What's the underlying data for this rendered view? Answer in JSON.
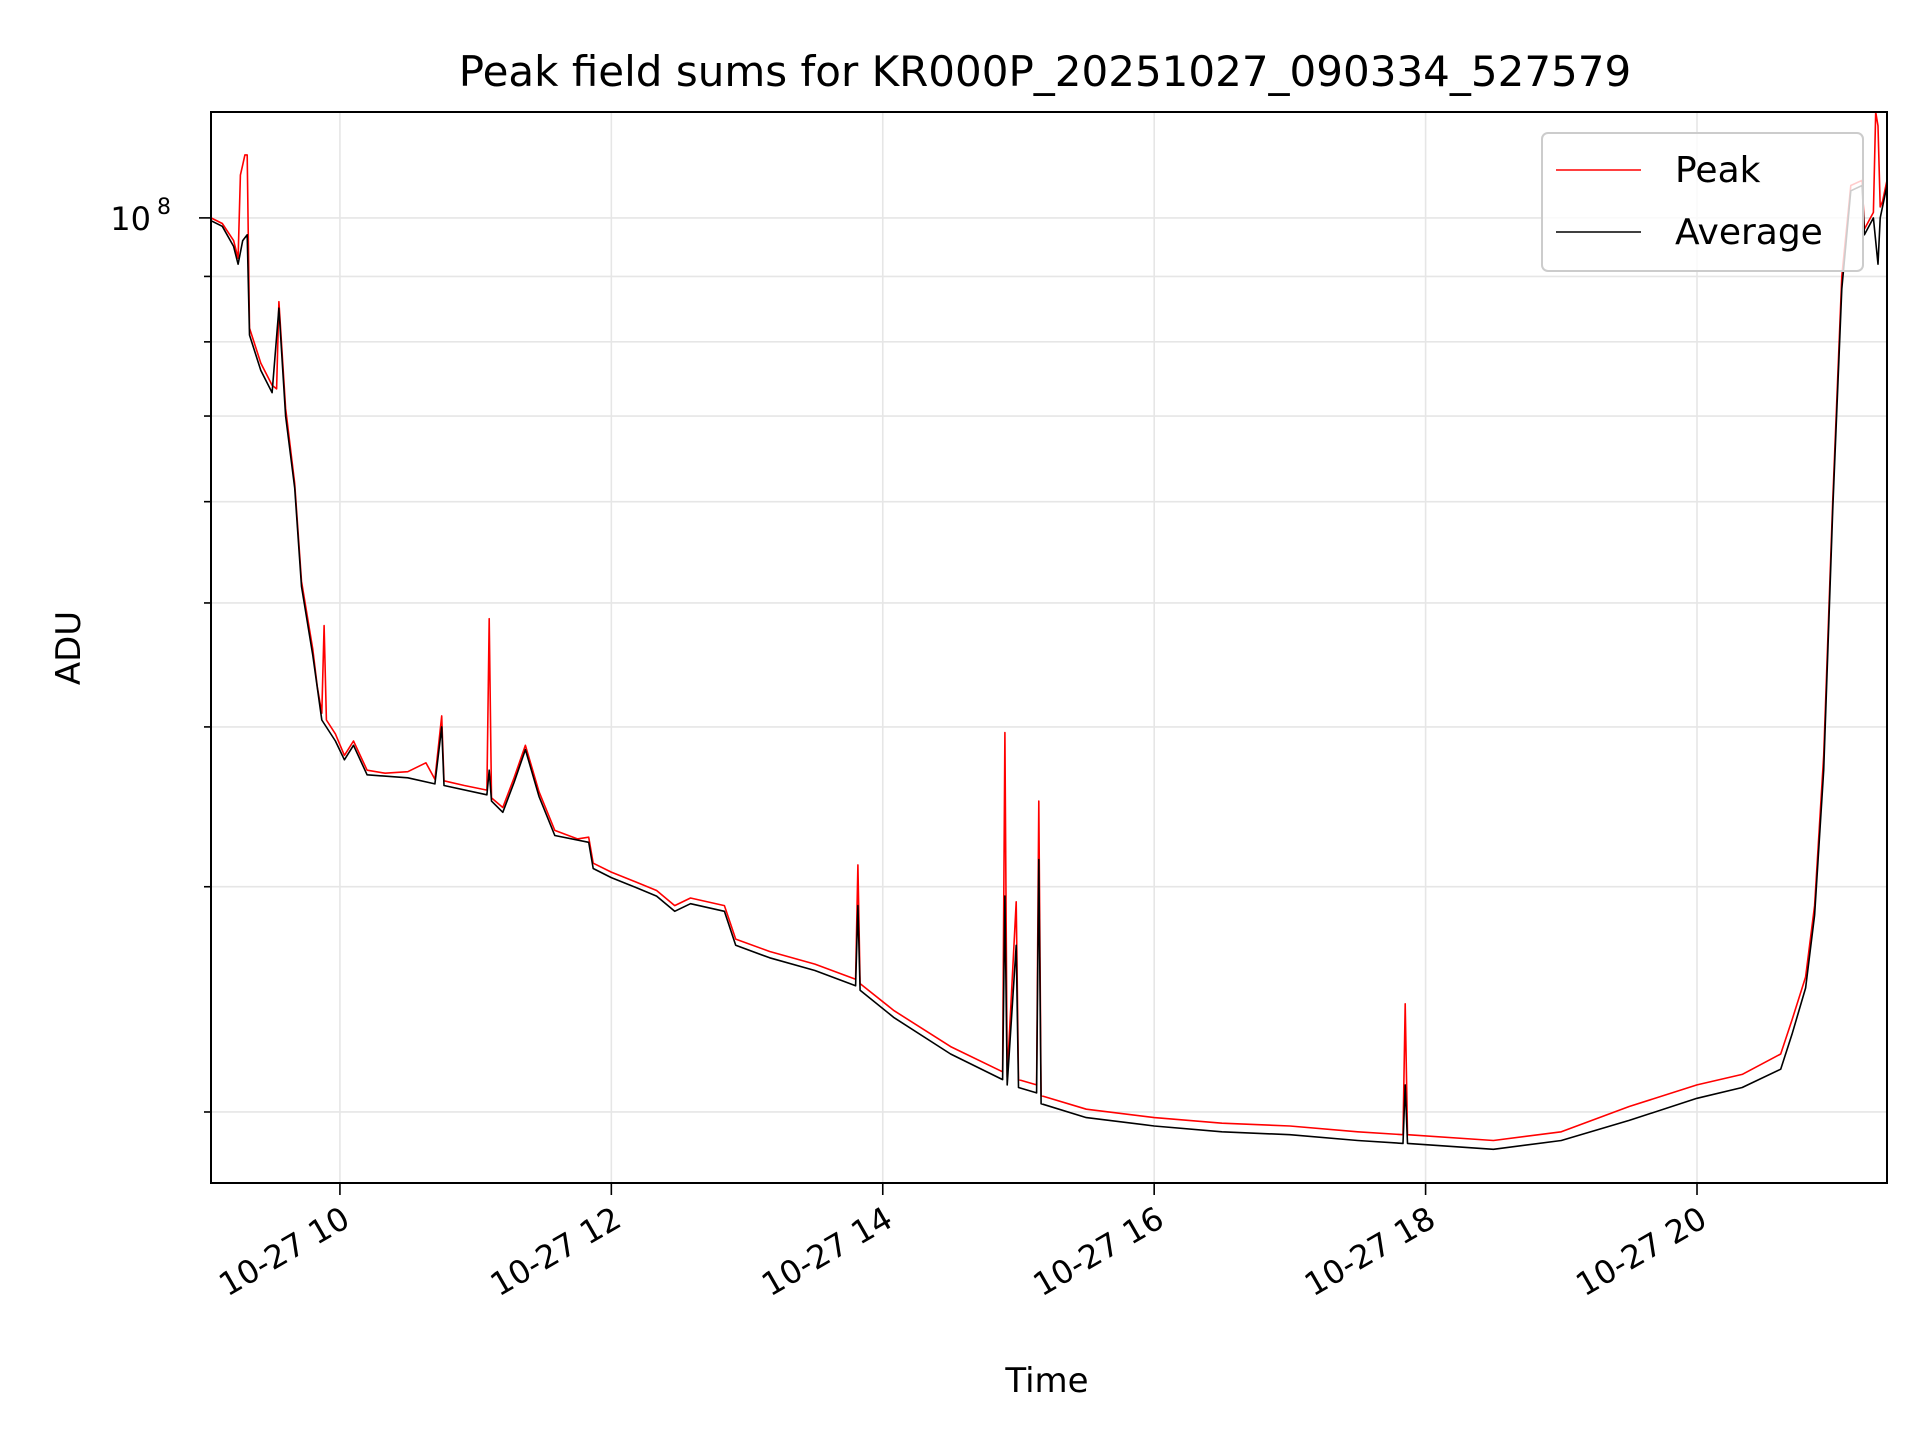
{
  "chart_data": {
    "type": "line",
    "title": "Peak field sums for KR000P_20251027_090334_527579",
    "xlabel": "Time",
    "ylabel": "ADU",
    "x_scale": "time",
    "y_scale": "log",
    "xlim": [
      "2025-10-27 09:03",
      "2025-10-27 21:24"
    ],
    "ylim": [
      17600000,
      121000000
    ],
    "grid": true,
    "legend_position": "upper right",
    "x_ticks": [
      {
        "label": "10-27 10",
        "value": "2025-10-27 10:00"
      },
      {
        "label": "10-27 12",
        "value": "2025-10-27 12:00"
      },
      {
        "label": "10-27 14",
        "value": "2025-10-27 14:00"
      },
      {
        "label": "10-27 16",
        "value": "2025-10-27 16:00"
      },
      {
        "label": "10-27 18",
        "value": "2025-10-27 18:00"
      },
      {
        "label": "10-27 20",
        "value": "2025-10-27 20:00"
      }
    ],
    "y_major_ticks": [
      {
        "label_base": "10",
        "label_exp": "8",
        "value": 100000000
      }
    ],
    "y_minor_ticks": [
      20000000,
      30000000,
      40000000,
      50000000,
      60000000,
      70000000,
      80000000,
      90000000
    ],
    "series": [
      {
        "name": "Peak",
        "color": "#ff0000",
        "points": [
          [
            "2025-10-27 09:03",
            100000000
          ],
          [
            "2025-10-27 09:08",
            99000000
          ],
          [
            "2025-10-27 09:13",
            96000000
          ],
          [
            "2025-10-27 09:15",
            93000000
          ],
          [
            "2025-10-27 09:16",
            108000000
          ],
          [
            "2025-10-27 09:17",
            110000000
          ],
          [
            "2025-10-27 09:18",
            112000000
          ],
          [
            "2025-10-27 09:19",
            112000000
          ],
          [
            "2025-10-27 09:20",
            82000000
          ],
          [
            "2025-10-27 09:25",
            77000000
          ],
          [
            "2025-10-27 09:30",
            74000000
          ],
          [
            "2025-10-27 09:32",
            73500000
          ],
          [
            "2025-10-27 09:33",
            86000000
          ],
          [
            "2025-10-27 09:36",
            71000000
          ],
          [
            "2025-10-27 09:40",
            62000000
          ],
          [
            "2025-10-27 09:43",
            52000000
          ],
          [
            "2025-10-27 09:48",
            46000000
          ],
          [
            "2025-10-27 09:50",
            43000000
          ],
          [
            "2025-10-27 09:52",
            41000000
          ],
          [
            "2025-10-27 09:53",
            48000000
          ],
          [
            "2025-10-27 09:54",
            40500000
          ],
          [
            "2025-10-27 09:58",
            39500000
          ],
          [
            "2025-10-27 10:02",
            38000000
          ],
          [
            "2025-10-27 10:06",
            39000000
          ],
          [
            "2025-10-27 10:12",
            37000000
          ],
          [
            "2025-10-27 10:20",
            36800000
          ],
          [
            "2025-10-27 10:30",
            36900000
          ],
          [
            "2025-10-27 10:38",
            37500000
          ],
          [
            "2025-10-27 10:42",
            36400000
          ],
          [
            "2025-10-27 10:45",
            40800000
          ],
          [
            "2025-10-27 10:46",
            36300000
          ],
          [
            "2025-10-27 10:55",
            36000000
          ],
          [
            "2025-10-27 11:05",
            35700000
          ],
          [
            "2025-10-27 11:06",
            48600000
          ],
          [
            "2025-10-27 11:07",
            35200000
          ],
          [
            "2025-10-27 11:12",
            34600000
          ],
          [
            "2025-10-27 11:17",
            36500000
          ],
          [
            "2025-10-27 11:22",
            38700000
          ],
          [
            "2025-10-27 11:28",
            35600000
          ],
          [
            "2025-10-27 11:35",
            33200000
          ],
          [
            "2025-10-27 11:45",
            32700000
          ],
          [
            "2025-10-27 11:50",
            32800000
          ],
          [
            "2025-10-27 11:52",
            31300000
          ],
          [
            "2025-10-27 12:00",
            30800000
          ],
          [
            "2025-10-27 12:10",
            30300000
          ],
          [
            "2025-10-27 12:20",
            29800000
          ],
          [
            "2025-10-27 12:28",
            29000000
          ],
          [
            "2025-10-27 12:35",
            29400000
          ],
          [
            "2025-10-27 12:50",
            29000000
          ],
          [
            "2025-10-27 12:55",
            27300000
          ],
          [
            "2025-10-27 13:10",
            26700000
          ],
          [
            "2025-10-27 13:30",
            26100000
          ],
          [
            "2025-10-27 13:48",
            25400000
          ],
          [
            "2025-10-27 13:49",
            31200000
          ],
          [
            "2025-10-27 13:50",
            25200000
          ],
          [
            "2025-10-27 14:05",
            24000000
          ],
          [
            "2025-10-27 14:30",
            22500000
          ],
          [
            "2025-10-27 14:53",
            21500000
          ],
          [
            "2025-10-27 14:54",
            39600000
          ],
          [
            "2025-10-27 14:55",
            21300000
          ],
          [
            "2025-10-27 14:59",
            29200000
          ],
          [
            "2025-10-27 15:00",
            21200000
          ],
          [
            "2025-10-27 15:08",
            21000000
          ],
          [
            "2025-10-27 15:09",
            35000000
          ],
          [
            "2025-10-27 15:10",
            20600000
          ],
          [
            "2025-10-27 15:30",
            20100000
          ],
          [
            "2025-10-27 16:00",
            19800000
          ],
          [
            "2025-10-27 16:30",
            19600000
          ],
          [
            "2025-10-27 17:00",
            19500000
          ],
          [
            "2025-10-27 17:30",
            19300000
          ],
          [
            "2025-10-27 17:50",
            19200000
          ],
          [
            "2025-10-27 17:51",
            24300000
          ],
          [
            "2025-10-27 17:52",
            19200000
          ],
          [
            "2025-10-27 18:30",
            19000000
          ],
          [
            "2025-10-27 19:00",
            19300000
          ],
          [
            "2025-10-27 19:30",
            20200000
          ],
          [
            "2025-10-27 20:00",
            21000000
          ],
          [
            "2025-10-27 20:20",
            21400000
          ],
          [
            "2025-10-27 20:37",
            22200000
          ],
          [
            "2025-10-27 20:42",
            23600000
          ],
          [
            "2025-10-27 20:48",
            25500000
          ],
          [
            "2025-10-27 20:52",
            29000000
          ],
          [
            "2025-10-27 20:56",
            38000000
          ],
          [
            "2025-10-27 21:00",
            60000000
          ],
          [
            "2025-10-27 21:04",
            90000000
          ],
          [
            "2025-10-27 21:08",
            106000000
          ],
          [
            "2025-10-27 21:13",
            107000000
          ],
          [
            "2025-10-27 21:14",
            98000000
          ],
          [
            "2025-10-27 21:18",
            101000000
          ],
          [
            "2025-10-27 21:19",
            121000000
          ],
          [
            "2025-10-27 21:20",
            118000000
          ],
          [
            "2025-10-27 21:21",
            102000000
          ],
          [
            "2025-10-27 21:22",
            103000000
          ],
          [
            "2025-10-27 21:24",
            107000000
          ]
        ]
      },
      {
        "name": "Average",
        "color": "#000000",
        "points": [
          [
            "2025-10-27 09:03",
            99500000
          ],
          [
            "2025-10-27 09:08",
            98500000
          ],
          [
            "2025-10-27 09:13",
            95000000
          ],
          [
            "2025-10-27 09:15",
            92000000
          ],
          [
            "2025-10-27 09:17",
            96000000
          ],
          [
            "2025-10-27 09:19",
            97000000
          ],
          [
            "2025-10-27 09:20",
            81000000
          ],
          [
            "2025-10-27 09:25",
            76000000
          ],
          [
            "2025-10-27 09:30",
            73000000
          ],
          [
            "2025-10-27 09:33",
            85000000
          ],
          [
            "2025-10-27 09:36",
            70000000
          ],
          [
            "2025-10-27 09:40",
            61500000
          ],
          [
            "2025-10-27 09:43",
            51500000
          ],
          [
            "2025-10-27 09:48",
            45500000
          ],
          [
            "2025-10-27 09:52",
            40500000
          ],
          [
            "2025-10-27 09:58",
            39000000
          ],
          [
            "2025-10-27 10:02",
            37700000
          ],
          [
            "2025-10-27 10:06",
            38700000
          ],
          [
            "2025-10-27 10:12",
            36700000
          ],
          [
            "2025-10-27 10:30",
            36500000
          ],
          [
            "2025-10-27 10:42",
            36100000
          ],
          [
            "2025-10-27 10:45",
            40000000
          ],
          [
            "2025-10-27 10:46",
            36000000
          ],
          [
            "2025-10-27 11:05",
            35400000
          ],
          [
            "2025-10-27 11:06",
            37000000
          ],
          [
            "2025-10-27 11:07",
            35000000
          ],
          [
            "2025-10-27 11:12",
            34300000
          ],
          [
            "2025-10-27 11:17",
            36200000
          ],
          [
            "2025-10-27 11:22",
            38400000
          ],
          [
            "2025-10-27 11:28",
            35300000
          ],
          [
            "2025-10-27 11:35",
            32900000
          ],
          [
            "2025-10-27 11:50",
            32500000
          ],
          [
            "2025-10-27 11:52",
            31000000
          ],
          [
            "2025-10-27 12:00",
            30500000
          ],
          [
            "2025-10-27 12:10",
            30000000
          ],
          [
            "2025-10-27 12:20",
            29500000
          ],
          [
            "2025-10-27 12:28",
            28700000
          ],
          [
            "2025-10-27 12:35",
            29100000
          ],
          [
            "2025-10-27 12:50",
            28700000
          ],
          [
            "2025-10-27 12:55",
            27000000
          ],
          [
            "2025-10-27 13:10",
            26400000
          ],
          [
            "2025-10-27 13:30",
            25800000
          ],
          [
            "2025-10-27 13:48",
            25100000
          ],
          [
            "2025-10-27 13:49",
            29000000
          ],
          [
            "2025-10-27 13:50",
            24900000
          ],
          [
            "2025-10-27 14:05",
            23700000
          ],
          [
            "2025-10-27 14:30",
            22200000
          ],
          [
            "2025-10-27 14:53",
            21200000
          ],
          [
            "2025-10-27 14:54",
            29500000
          ],
          [
            "2025-10-27 14:55",
            21000000
          ],
          [
            "2025-10-27 14:59",
            27000000
          ],
          [
            "2025-10-27 15:00",
            20900000
          ],
          [
            "2025-10-27 15:08",
            20700000
          ],
          [
            "2025-10-27 15:09",
            31500000
          ],
          [
            "2025-10-27 15:10",
            20300000
          ],
          [
            "2025-10-27 15:30",
            19800000
          ],
          [
            "2025-10-27 16:00",
            19500000
          ],
          [
            "2025-10-27 16:30",
            19300000
          ],
          [
            "2025-10-27 17:00",
            19200000
          ],
          [
            "2025-10-27 17:30",
            19000000
          ],
          [
            "2025-10-27 17:50",
            18900000
          ],
          [
            "2025-10-27 17:51",
            21000000
          ],
          [
            "2025-10-27 17:52",
            18900000
          ],
          [
            "2025-10-27 18:30",
            18700000
          ],
          [
            "2025-10-27 19:00",
            19000000
          ],
          [
            "2025-10-27 19:30",
            19700000
          ],
          [
            "2025-10-27 20:00",
            20500000
          ],
          [
            "2025-10-27 20:20",
            20900000
          ],
          [
            "2025-10-27 20:37",
            21600000
          ],
          [
            "2025-10-27 20:42",
            23000000
          ],
          [
            "2025-10-27 20:48",
            25000000
          ],
          [
            "2025-10-27 20:52",
            28500000
          ],
          [
            "2025-10-27 20:56",
            37000000
          ],
          [
            "2025-10-27 21:00",
            59000000
          ],
          [
            "2025-10-27 21:04",
            88000000
          ],
          [
            "2025-10-27 21:08",
            105000000
          ],
          [
            "2025-10-27 21:13",
            106000000
          ],
          [
            "2025-10-27 21:14",
            97000000
          ],
          [
            "2025-10-27 21:18",
            100000000
          ],
          [
            "2025-10-27 21:20",
            92000000
          ],
          [
            "2025-10-27 21:21",
            100000000
          ],
          [
            "2025-10-27 21:22",
            102000000
          ],
          [
            "2025-10-27 21:24",
            106000000
          ]
        ]
      }
    ]
  }
}
